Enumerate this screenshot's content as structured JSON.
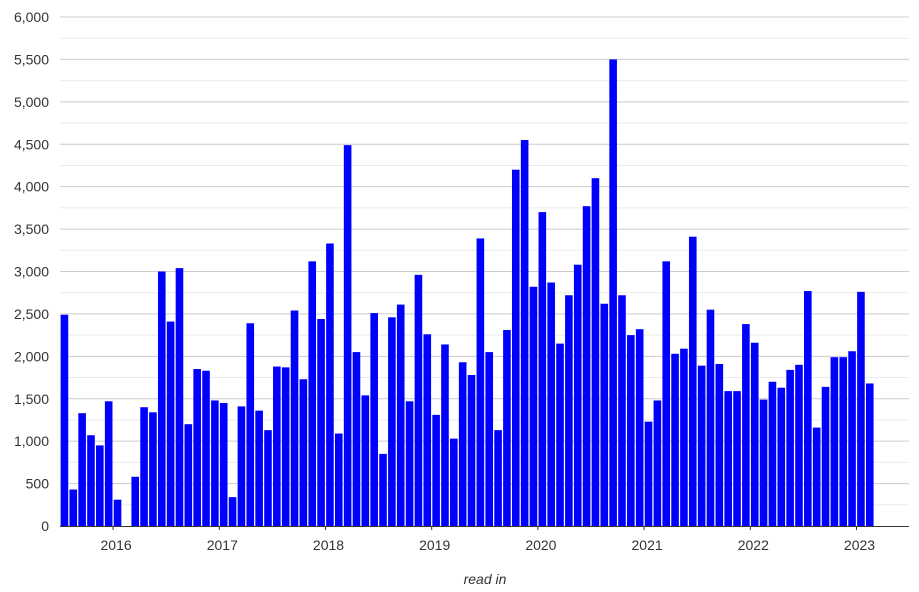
{
  "chart_data": {
    "type": "bar",
    "title": "",
    "xlabel": "read in",
    "ylabel": "",
    "ylim": [
      0,
      6000
    ],
    "y_ticks": [
      0,
      500,
      1000,
      1500,
      2000,
      2500,
      3000,
      3500,
      4000,
      4500,
      5000,
      5500,
      6000
    ],
    "y_tick_labels": [
      "0",
      "500",
      "1,000",
      "1,500",
      "2,000",
      "2,500",
      "3,000",
      "3,500",
      "4,000",
      "4,500",
      "5,000",
      "5,500",
      "6,000"
    ],
    "x_ticks": [
      {
        "label": "2016",
        "date": "2016-01"
      },
      {
        "label": "2017",
        "date": "2017-01"
      },
      {
        "label": "2018",
        "date": "2018-01"
      },
      {
        "label": "2019",
        "date": "2019-01"
      },
      {
        "label": "2020",
        "date": "2020-01"
      },
      {
        "label": "2021",
        "date": "2021-01"
      },
      {
        "label": "2022",
        "date": "2022-01"
      },
      {
        "label": "2023",
        "date": "2023-01"
      }
    ],
    "grid": true,
    "legend": "none",
    "bar_color": "#0000ff",
    "categories": [
      "2015-07",
      "2015-08",
      "2015-09",
      "2015-10",
      "2015-11",
      "2015-12",
      "2016-01",
      "2016-02",
      "2016-03",
      "2016-04",
      "2016-05",
      "2016-06",
      "2016-07",
      "2016-08",
      "2016-09",
      "2016-10",
      "2016-11",
      "2016-12",
      "2017-01",
      "2017-02",
      "2017-03",
      "2017-04",
      "2017-05",
      "2017-06",
      "2017-07",
      "2017-08",
      "2017-09",
      "2017-10",
      "2017-11",
      "2017-12",
      "2018-01",
      "2018-02",
      "2018-03",
      "2018-04",
      "2018-05",
      "2018-06",
      "2018-07",
      "2018-08",
      "2018-09",
      "2018-10",
      "2018-11",
      "2018-12",
      "2019-01",
      "2019-02",
      "2019-03",
      "2019-04",
      "2019-05",
      "2019-06",
      "2019-07",
      "2019-08",
      "2019-09",
      "2019-10",
      "2019-11",
      "2019-12",
      "2020-01",
      "2020-02",
      "2020-03",
      "2020-04",
      "2020-05",
      "2020-06",
      "2020-07",
      "2020-08",
      "2020-09",
      "2020-10",
      "2020-11",
      "2020-12",
      "2021-01",
      "2021-02",
      "2021-03",
      "2021-04",
      "2021-05",
      "2021-06",
      "2021-07",
      "2021-08",
      "2021-09",
      "2021-10",
      "2021-11",
      "2021-12",
      "2022-01",
      "2022-02",
      "2022-03",
      "2022-04",
      "2022-05",
      "2022-06",
      "2022-07",
      "2022-08",
      "2022-09",
      "2022-10",
      "2022-11",
      "2022-12",
      "2023-01",
      "2023-02"
    ],
    "values": [
      2490,
      430,
      1330,
      1070,
      950,
      1470,
      310,
      0,
      580,
      1400,
      1340,
      3000,
      2410,
      3040,
      1200,
      1850,
      1830,
      1480,
      1450,
      340,
      1410,
      2390,
      1360,
      1130,
      1880,
      1870,
      2540,
      1730,
      3120,
      2440,
      3330,
      1090,
      4490,
      2050,
      1540,
      2510,
      850,
      2460,
      2610,
      1470,
      2960,
      2260,
      1310,
      2140,
      1030,
      1930,
      1780,
      3390,
      2050,
      1130,
      2310,
      4200,
      4550,
      2820,
      3700,
      2870,
      2150,
      2720,
      3080,
      3770,
      4100,
      2620,
      5500,
      2720,
      2250,
      2320,
      1230,
      1480,
      3120,
      2030,
      2090,
      3410,
      1890,
      2550,
      1910,
      1590,
      1590,
      2380,
      2160,
      1490,
      1700,
      1630,
      1840,
      1900,
      2770,
      1160,
      1640,
      1990,
      1990,
      2060,
      2760,
      1680
    ]
  }
}
